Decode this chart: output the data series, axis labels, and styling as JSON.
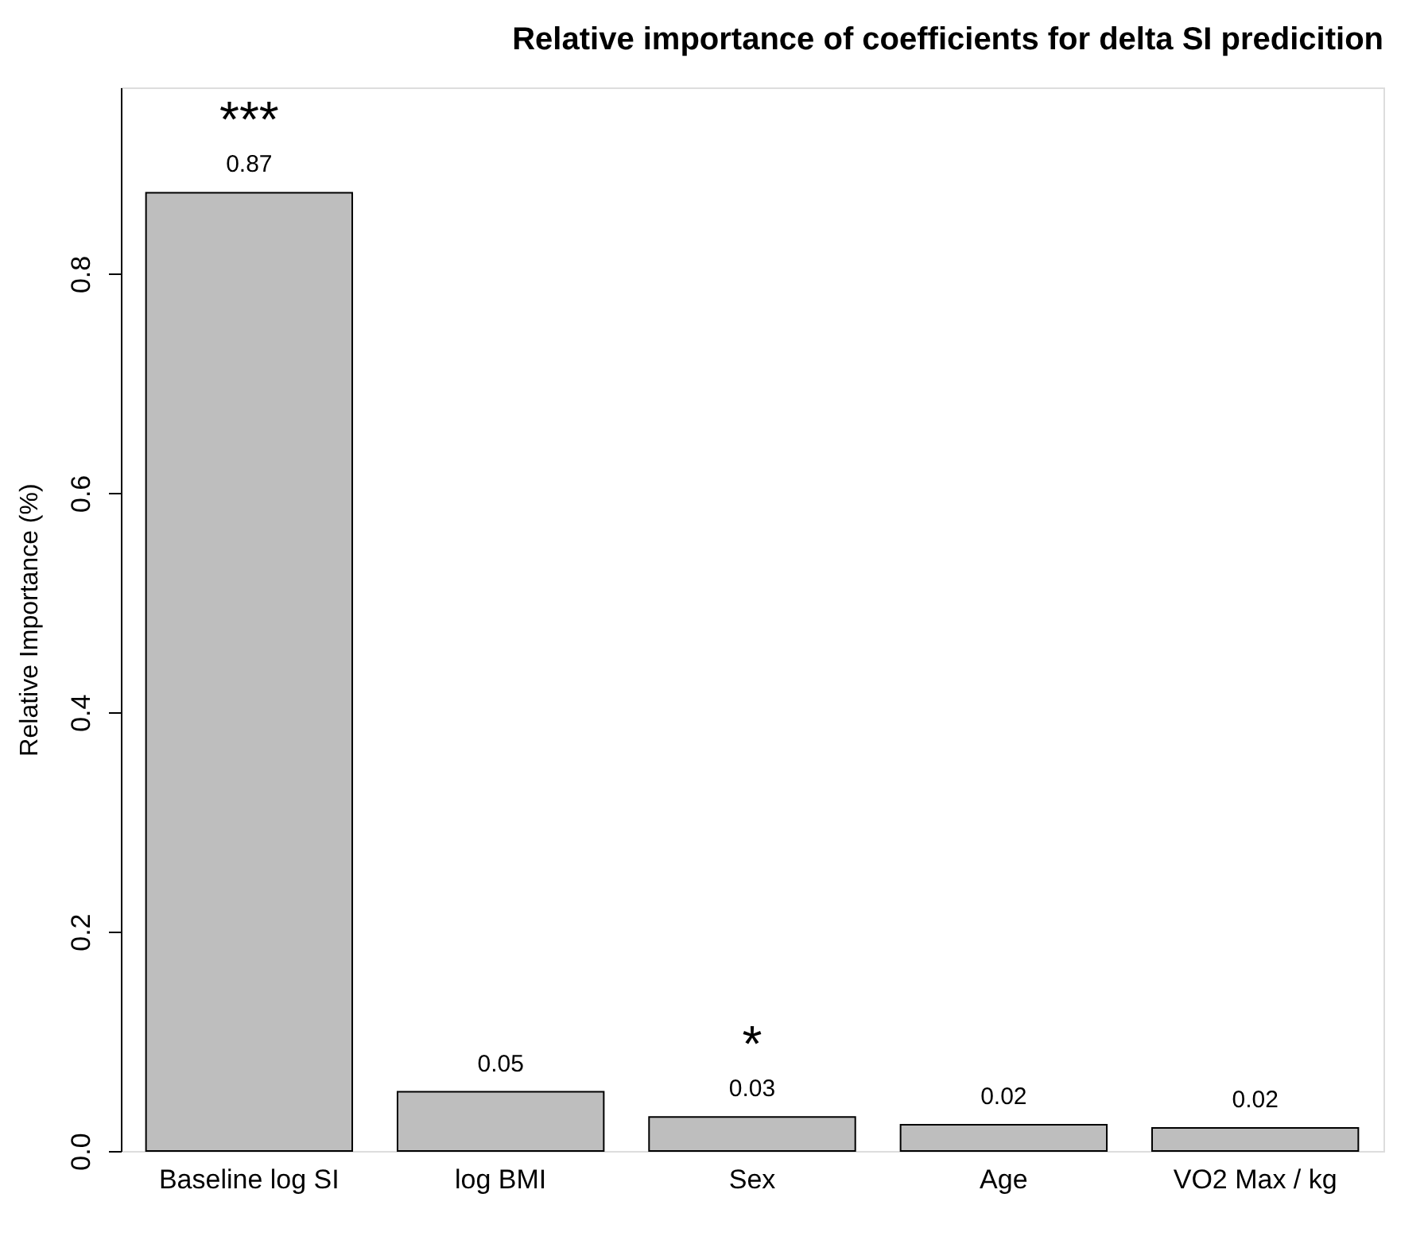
{
  "chart_data": {
    "type": "bar",
    "title": "Relative importance of coefficients for delta SI predicition",
    "ylabel": "Relative Importance (%)",
    "categories": [
      "Baseline log SI",
      "log BMI",
      "Sex",
      "Age",
      "VO2 Max / kg"
    ],
    "values": [
      0.874,
      0.054,
      0.031,
      0.024,
      0.021
    ],
    "value_labels": [
      "0.87",
      "0.05",
      "0.03",
      "0.02",
      "0.02"
    ],
    "color": "#bebebe",
    "ylim": [
      0,
      0.97
    ],
    "yticks": [
      {
        "value": 0,
        "label": "0.0"
      },
      {
        "value": 0.2,
        "label": "0.2"
      },
      {
        "value": 0.4,
        "label": "0.4"
      },
      {
        "value": 0.6,
        "label": "0.6"
      },
      {
        "value": 0.8,
        "label": "0.8"
      }
    ],
    "annotations": [
      {
        "text": "***",
        "x": "Baseline log SI",
        "y": 0.874
      },
      {
        "text": "*",
        "x": "Sex",
        "y": 0.031
      }
    ],
    "grid": false
  }
}
